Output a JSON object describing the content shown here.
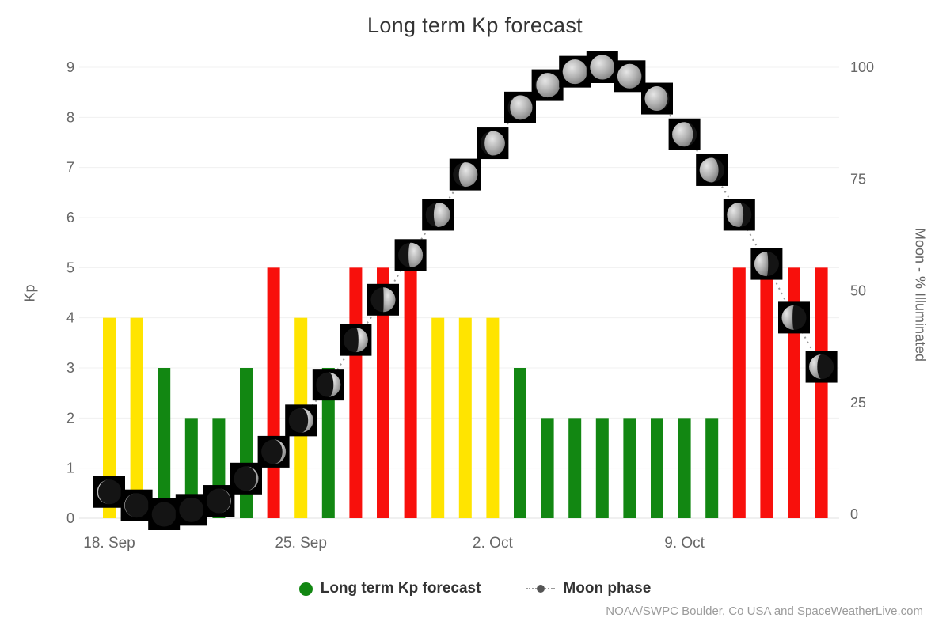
{
  "title": "Long term Kp forecast",
  "credit": "NOAA/SWPC Boulder, Co USA and SpaceWeatherLive.com",
  "legend": {
    "kp_label": "Long term Kp forecast",
    "moon_label": "Moon phase"
  },
  "colors": {
    "kp_low": "#128712",
    "kp_moderate": "#ffe400",
    "kp_high": "#f8100c",
    "moon_line": "#999999",
    "axis_text": "#666666",
    "title_text": "#333333",
    "grid_line": "#f0f0f0",
    "baseline": "#e0e0e0",
    "credit_text": "#9b9b9b"
  },
  "chart_data": {
    "type": "bar",
    "title": "Long term Kp forecast",
    "days": [
      "18 Sep",
      "19 Sep",
      "20 Sep",
      "21 Sep",
      "22 Sep",
      "23 Sep",
      "24 Sep",
      "25 Sep",
      "26 Sep",
      "27 Sep",
      "28 Sep",
      "29 Sep",
      "30 Sep",
      "1 Oct",
      "2 Oct",
      "3 Oct",
      "4 Oct",
      "5 Oct",
      "6 Oct",
      "7 Oct",
      "8 Oct",
      "9 Oct",
      "10 Oct",
      "11 Oct",
      "12 Oct",
      "13 Oct",
      "14 Oct"
    ],
    "series": [
      {
        "name": "Long term Kp forecast",
        "type": "column",
        "axis": "left",
        "values": [
          4,
          4,
          3,
          2,
          2,
          3,
          5,
          4,
          3,
          5,
          5,
          5,
          4,
          4,
          4,
          3,
          2,
          2,
          2,
          2,
          2,
          2,
          2,
          5,
          5,
          5,
          5
        ],
        "color_rule": "green if Kp<4, yellow if Kp=4, red if Kp>=5"
      },
      {
        "name": "Moon phase",
        "type": "line-with-moon-icons",
        "axis": "right",
        "values": [
          5,
          2,
          0,
          1,
          3,
          8,
          14,
          21,
          29,
          39,
          48,
          58,
          67,
          76,
          83,
          91,
          96,
          99,
          100,
          98,
          93,
          85,
          77,
          67,
          56,
          44,
          33
        ]
      }
    ],
    "x_ticks": [
      {
        "label": "18. Sep",
        "day_index": 0
      },
      {
        "label": "25. Sep",
        "day_index": 7
      },
      {
        "label": "2. Oct",
        "day_index": 14
      },
      {
        "label": "9. Oct",
        "day_index": 21
      }
    ],
    "y_left": {
      "label": "Kp",
      "min": 0,
      "max": 9,
      "ticks": [
        0,
        1,
        2,
        3,
        4,
        5,
        6,
        7,
        8,
        9
      ]
    },
    "y_right": {
      "label": "Moon - % Illuminated",
      "min": 0,
      "max": 100,
      "ticks": [
        0,
        25,
        50,
        75,
        100
      ]
    },
    "grid": "horizontal-faint",
    "legend_position": "bottom-center"
  }
}
